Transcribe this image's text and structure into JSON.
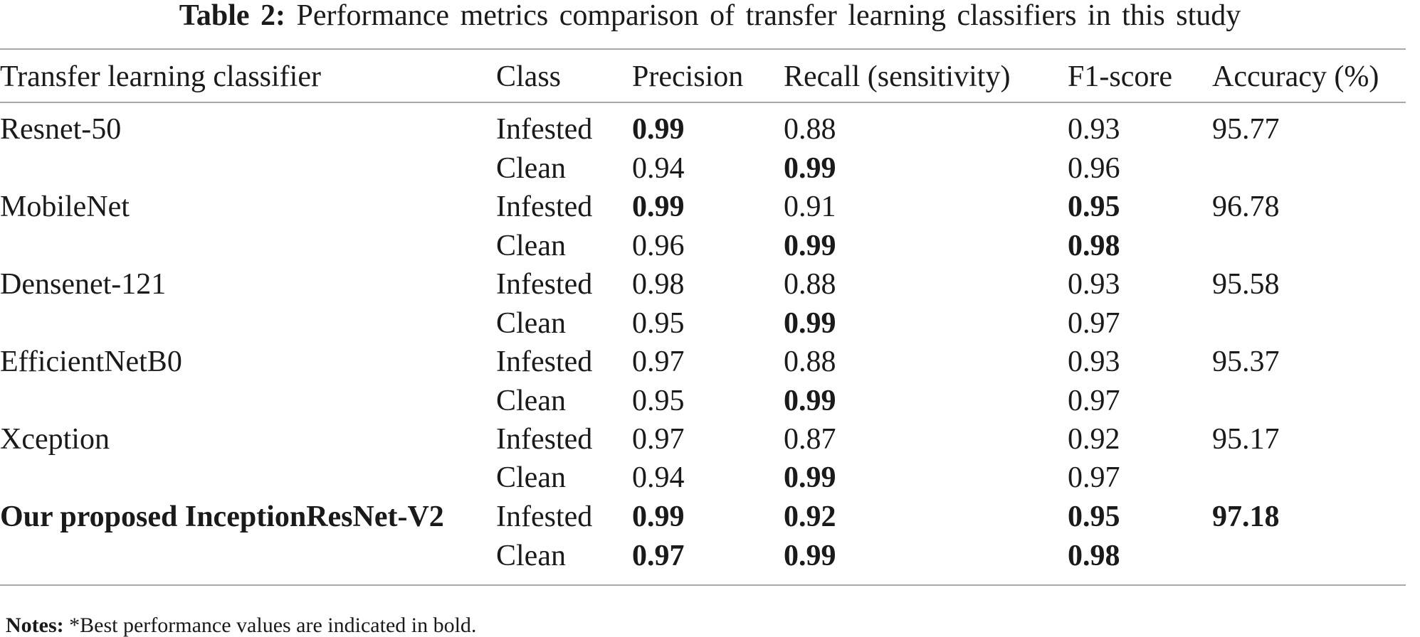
{
  "caption": {
    "label": "Table 2:",
    "text": "Performance metrics comparison of transfer learning classifiers in this study"
  },
  "columns": [
    "Transfer learning classifier",
    "Class",
    "Precision",
    "Recall (sensitivity)",
    "F1-score",
    "Accuracy (%)"
  ],
  "rows": [
    {
      "classifier": "Resnet-50",
      "cls": "Infested",
      "precision": "0.99",
      "recall": "0.88",
      "f1": "0.93",
      "accuracy": "95.77"
    },
    {
      "classifier": "",
      "cls": "Clean",
      "precision": "0.94",
      "recall": "0.99",
      "f1": "0.96",
      "accuracy": ""
    },
    {
      "classifier": "MobileNet",
      "cls": "Infested",
      "precision": "0.99",
      "recall": "0.91",
      "f1": "0.95",
      "accuracy": "96.78"
    },
    {
      "classifier": "",
      "cls": "Clean",
      "precision": "0.96",
      "recall": "0.99",
      "f1": "0.98",
      "accuracy": ""
    },
    {
      "classifier": "Densenet-121",
      "cls": "Infested",
      "precision": "0.98",
      "recall": "0.88",
      "f1": "0.93",
      "accuracy": "95.58"
    },
    {
      "classifier": "",
      "cls": "Clean",
      "precision": "0.95",
      "recall": "0.99",
      "f1": "0.97",
      "accuracy": ""
    },
    {
      "classifier": "EfficientNetB0",
      "cls": "Infested",
      "precision": "0.97",
      "recall": "0.88",
      "f1": "0.93",
      "accuracy": "95.37"
    },
    {
      "classifier": "",
      "cls": "Clean",
      "precision": "0.95",
      "recall": "0.99",
      "f1": "0.97",
      "accuracy": ""
    },
    {
      "classifier": "Xception",
      "cls": "Infested",
      "precision": "0.97",
      "recall": "0.87",
      "f1": "0.92",
      "accuracy": "95.17"
    },
    {
      "classifier": "",
      "cls": "Clean",
      "precision": "0.94",
      "recall": "0.99",
      "f1": "0.97",
      "accuracy": ""
    },
    {
      "classifier": "Our proposed InceptionResNet-V2",
      "cls": "Infested",
      "precision": "0.99",
      "recall": "0.92",
      "f1": "0.95",
      "accuracy": "97.18"
    },
    {
      "classifier": "",
      "cls": "Clean",
      "precision": "0.97",
      "recall": "0.99",
      "f1": "0.98",
      "accuracy": ""
    }
  ],
  "notes": {
    "label": "Notes:",
    "text": "*Best performance values are indicated in bold."
  }
}
